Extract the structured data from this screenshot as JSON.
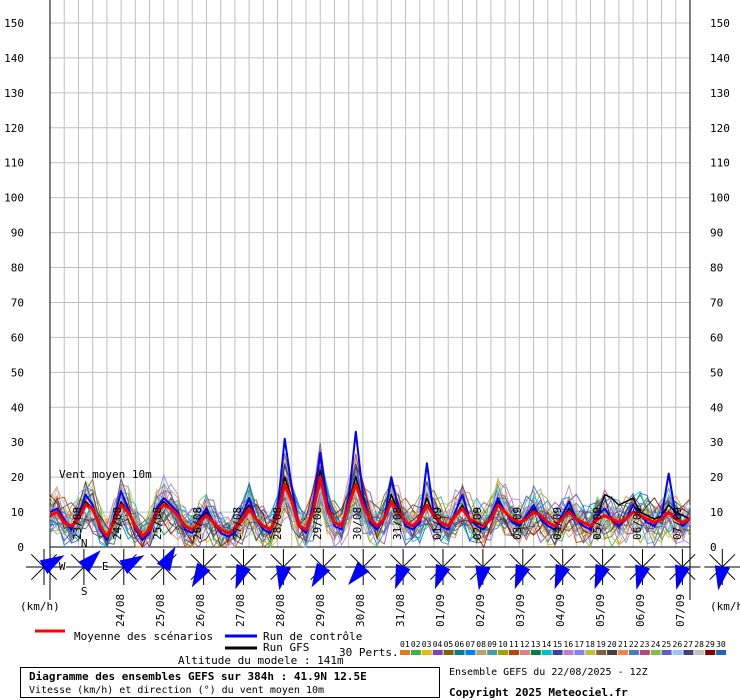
{
  "chart_data": {
    "type": "line",
    "ylim": [
      0,
      150
    ],
    "yticks": [
      0,
      10,
      20,
      30,
      40,
      50,
      60,
      70,
      80,
      90,
      100,
      110,
      120,
      130,
      140,
      150
    ],
    "date_labels_top": [
      "23/08",
      "24/08",
      "25/08",
      "26/08",
      "27/08",
      "28/08",
      "29/08",
      "30/08",
      "31/08",
      "01/09",
      "02/09",
      "03/09",
      "04/09",
      "05/09",
      "06/09",
      "07/09"
    ],
    "date_labels_bottom": [
      "24/08",
      "25/08",
      "26/08",
      "27/08",
      "28/08",
      "29/08",
      "30/08",
      "31/08",
      "01/09",
      "02/09",
      "03/09",
      "04/09",
      "05/09",
      "06/09",
      "07/09"
    ],
    "annotation": "Vent moyen 10m",
    "unit_left": "(km/h)",
    "unit_right": "(km/h)",
    "time_step_h": 6,
    "series": [
      {
        "name": "Moyenne des scénarios",
        "color": "#ff0000",
        "values": [
          9,
          10,
          7,
          6,
          8,
          12,
          11,
          6,
          3,
          7,
          12,
          10,
          6,
          3,
          5,
          10,
          12,
          11,
          9,
          6,
          5,
          7,
          9,
          7,
          5,
          4,
          5,
          8,
          11,
          8,
          6,
          5,
          9,
          18,
          13,
          6,
          5,
          10,
          20,
          11,
          7,
          6,
          12,
          18,
          12,
          8,
          6,
          8,
          13,
          10,
          7,
          6,
          8,
          12,
          9,
          7,
          6,
          9,
          11,
          8,
          7,
          6,
          8,
          12,
          10,
          8,
          7,
          8,
          10,
          9,
          7,
          6,
          8,
          10,
          8,
          7,
          6,
          8,
          9,
          8,
          7,
          8,
          10,
          9,
          8,
          7,
          8,
          10,
          8,
          7,
          8
        ]
      },
      {
        "name": "Run de contrôle",
        "color": "#0000ff",
        "values": [
          10,
          11,
          8,
          5,
          9,
          15,
          12,
          5,
          2,
          8,
          16,
          11,
          5,
          2,
          4,
          11,
          14,
          12,
          10,
          5,
          4,
          8,
          11,
          7,
          4,
          3,
          4,
          9,
          14,
          8,
          5,
          4,
          11,
          31,
          17,
          6,
          4,
          12,
          27,
          13,
          6,
          5,
          14,
          33,
          15,
          7,
          5,
          8,
          20,
          11,
          6,
          5,
          7,
          24,
          9,
          6,
          5,
          10,
          15,
          8,
          6,
          5,
          9,
          14,
          10,
          7,
          6,
          9,
          12,
          8,
          6,
          5,
          9,
          13,
          8,
          6,
          5,
          9,
          11,
          8,
          6,
          8,
          12,
          9,
          7,
          6,
          9,
          21,
          9,
          6,
          8
        ]
      },
      {
        "name": "Run GFS",
        "color": "#000000",
        "values": [
          9,
          10,
          7,
          6,
          8,
          13,
          11,
          6,
          3,
          7,
          13,
          10,
          6,
          3,
          5,
          11,
          13,
          11,
          9,
          6,
          5,
          7,
          10,
          7,
          5,
          4,
          5,
          9,
          12,
          8,
          6,
          5,
          10,
          20,
          14,
          6,
          5,
          11,
          22,
          12,
          7,
          6,
          13,
          20,
          13,
          8,
          6,
          8,
          15,
          10,
          7,
          6,
          8,
          14,
          9,
          7,
          6,
          9,
          12,
          8,
          7,
          6,
          8,
          13,
          10,
          8,
          7,
          8,
          11,
          9,
          7,
          6,
          8,
          11,
          8,
          7,
          6,
          9,
          15,
          14,
          12,
          13,
          14,
          10,
          9,
          8,
          9,
          12,
          10,
          9,
          8
        ]
      }
    ],
    "perturbations_count_label": "30 Perts.",
    "perturbation_labels": [
      "01",
      "02",
      "03",
      "04",
      "05",
      "06",
      "07",
      "08",
      "09",
      "10",
      "11",
      "12",
      "13",
      "14",
      "15",
      "16",
      "17",
      "18",
      "19",
      "20",
      "21",
      "22",
      "23",
      "24",
      "25",
      "26",
      "27",
      "28",
      "29",
      "30"
    ],
    "perturbation_colors": [
      "#e07820",
      "#40b040",
      "#e0c000",
      "#8040c0",
      "#806000",
      "#008080",
      "#0080ff",
      "#c0a060",
      "#40a0a0",
      "#a0a000",
      "#c04000",
      "#e08080",
      "#008040",
      "#00c0c0",
      "#4040a0",
      "#c080c0",
      "#8080ff",
      "#c0c040",
      "#806040",
      "#404040",
      "#ff8040",
      "#4080c0",
      "#c04080",
      "#80c040",
      "#6060c0",
      "#a0c0ff",
      "#404080",
      "#c0c0c0",
      "#800000",
      "#2060c0"
    ],
    "wind_directions_deg": [
      60,
      45,
      60,
      30,
      210,
      200,
      190,
      210,
      220,
      200,
      200,
      190,
      200,
      200,
      200,
      195,
      195,
      190,
      200,
      210,
      200,
      190
    ]
  },
  "legend": {
    "mean_label": "Moyenne des scénarios",
    "control_label": "Run de contrôle",
    "gfs_label": "Run GFS",
    "altitude_label": "Altitude du modele : 141m",
    "compass_n": "N",
    "compass_s": "S",
    "compass_e": "E",
    "compass_w": "W"
  },
  "title": {
    "line1": "Diagramme des ensembles GEFS sur 384h : 41.9N 12.5E",
    "line2": "Vitesse (km/h) et direction (°) du vent moyen 10m"
  },
  "ensemble_info": "Ensemble GEFS du 22/08/2025 - 12Z",
  "copyright": "Copyright 2025 Meteociel.fr",
  "colors": {
    "grid": "#c0c0c0",
    "wind_arrow": "#0000ff",
    "mean": "#ff0000",
    "control": "#0000ff",
    "gfs": "#000000"
  }
}
